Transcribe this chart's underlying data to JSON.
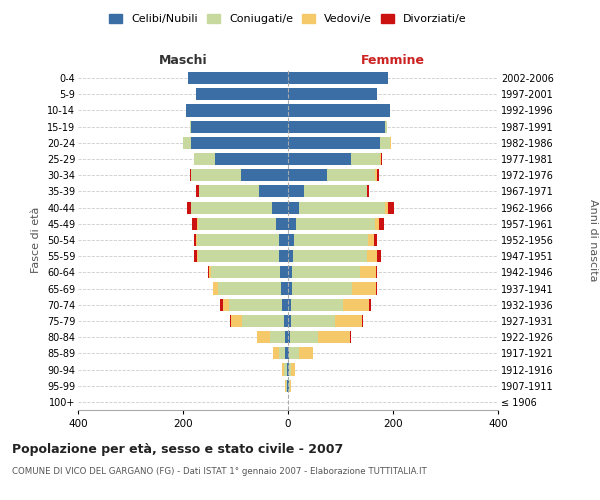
{
  "age_groups": [
    "100+",
    "95-99",
    "90-94",
    "85-89",
    "80-84",
    "75-79",
    "70-74",
    "65-69",
    "60-64",
    "55-59",
    "50-54",
    "45-49",
    "40-44",
    "35-39",
    "30-34",
    "25-29",
    "20-24",
    "15-19",
    "10-14",
    "5-9",
    "0-4"
  ],
  "birth_years": [
    "≤ 1906",
    "1907-1911",
    "1912-1916",
    "1917-1921",
    "1922-1926",
    "1927-1931",
    "1932-1936",
    "1937-1941",
    "1942-1946",
    "1947-1951",
    "1952-1956",
    "1957-1961",
    "1962-1966",
    "1967-1971",
    "1972-1976",
    "1977-1981",
    "1982-1986",
    "1987-1991",
    "1992-1996",
    "1997-2001",
    "2002-2006"
  ],
  "male": {
    "celibi": [
      0,
      1,
      2,
      5,
      5,
      8,
      12,
      14,
      16,
      17,
      18,
      22,
      30,
      55,
      90,
      140,
      185,
      185,
      195,
      175,
      190
    ],
    "coniugati": [
      0,
      2,
      5,
      12,
      30,
      80,
      100,
      120,
      130,
      155,
      155,
      150,
      155,
      115,
      95,
      40,
      15,
      2,
      0,
      0,
      0
    ],
    "vedovi": [
      0,
      2,
      5,
      12,
      25,
      20,
      12,
      8,
      5,
      2,
      2,
      1,
      0,
      0,
      0,
      0,
      0,
      0,
      0,
      0,
      0
    ],
    "divorziati": [
      0,
      0,
      0,
      0,
      0,
      2,
      5,
      0,
      2,
      5,
      5,
      10,
      7,
      5,
      2,
      0,
      0,
      0,
      0,
      0,
      0
    ]
  },
  "female": {
    "nubili": [
      0,
      1,
      1,
      2,
      3,
      5,
      5,
      7,
      8,
      10,
      12,
      15,
      20,
      30,
      75,
      120,
      175,
      185,
      195,
      170,
      190
    ],
    "coniugate": [
      0,
      2,
      5,
      18,
      55,
      85,
      100,
      115,
      130,
      140,
      140,
      150,
      165,
      120,
      90,
      55,
      20,
      3,
      0,
      0,
      0
    ],
    "vedove": [
      0,
      3,
      8,
      28,
      60,
      50,
      50,
      45,
      30,
      20,
      12,
      8,
      5,
      0,
      5,
      2,
      2,
      0,
      0,
      0,
      0
    ],
    "divorziate": [
      0,
      0,
      0,
      0,
      2,
      2,
      3,
      2,
      2,
      8,
      5,
      10,
      12,
      5,
      3,
      2,
      0,
      0,
      0,
      0,
      0
    ]
  },
  "colors": {
    "celibi": "#3a6ea5",
    "coniugati": "#c8d9a0",
    "vedovi": "#f5c96a",
    "divorziati": "#cc1111"
  },
  "title": "Popolazione per età, sesso e stato civile - 2007",
  "subtitle": "COMUNE DI VICO DEL GARGANO (FG) - Dati ISTAT 1° gennaio 2007 - Elaborazione TUTTITALIA.IT",
  "xlabel_left": "Maschi",
  "xlabel_right": "Femmine",
  "ylabel_left": "Fasce di età",
  "ylabel_right": "Anni di nascita",
  "xlim": 400,
  "legend_labels": [
    "Celibi/Nubili",
    "Coniugati/e",
    "Vedovi/e",
    "Divorziati/e"
  ],
  "background_color": "#ffffff",
  "grid_color": "#cccccc"
}
